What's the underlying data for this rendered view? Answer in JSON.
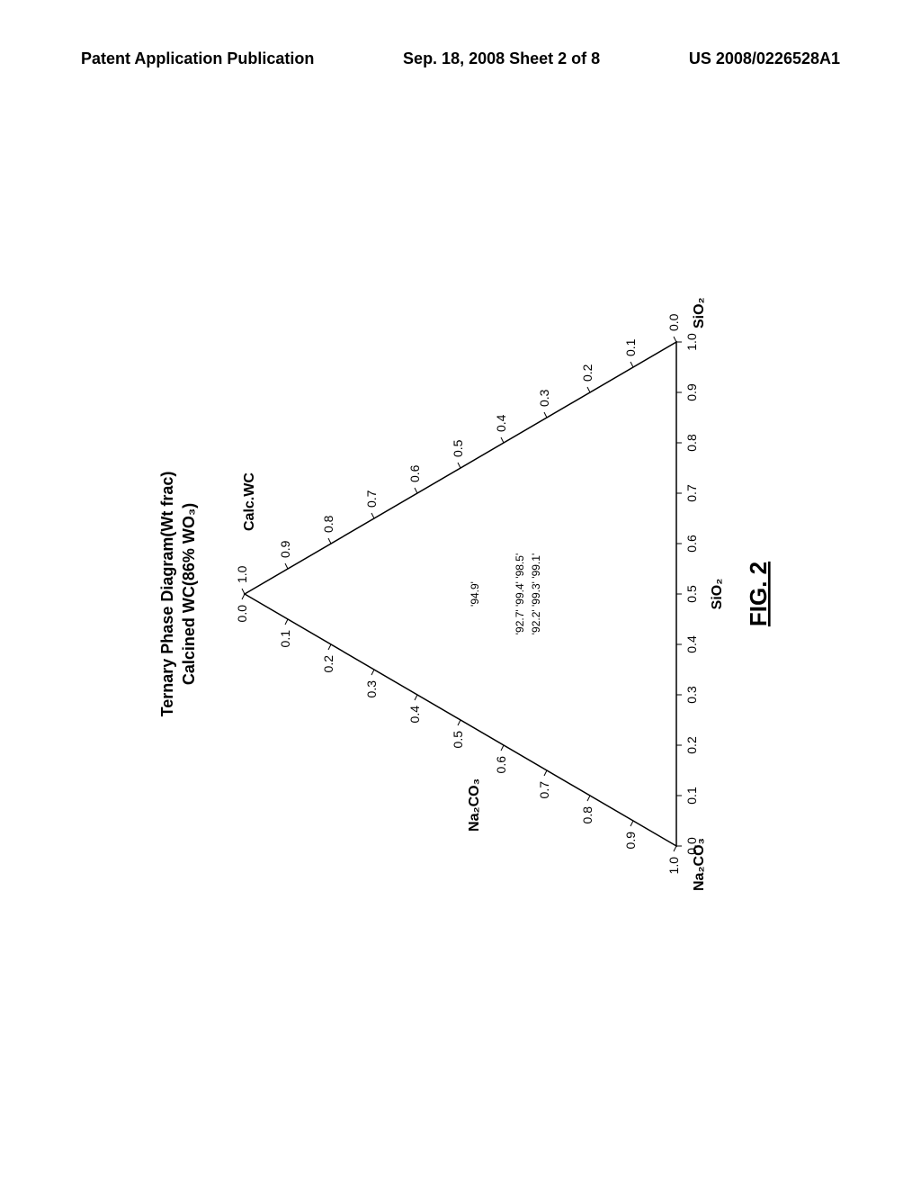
{
  "header": {
    "left": "Patent Application Publication",
    "center": "Sep. 18, 2008  Sheet 2 of 8",
    "right": "US 2008/0226528A1"
  },
  "figure_label": "FIG. 2",
  "diagram": {
    "title_line1": "Ternary Phase Diagram(Wt frac)",
    "title_line2": "Calcined WC(86% WO₃)",
    "vertex_top": "Calc.WC",
    "vertex_left": "Na₂CO₃",
    "vertex_right": "SiO₂",
    "axis_bottom_label": "SiO₂",
    "axis_left_label": "Na₂CO₃",
    "ticks": [
      "0.0",
      "0.1",
      "0.2",
      "0.3",
      "0.4",
      "0.5",
      "0.6",
      "0.7",
      "0.8",
      "0.9",
      "1.0"
    ],
    "data_points_labels": [
      "'94.9'",
      "'92.7' '99.4' '98.5'",
      "'92.2' '99.3' '99.1'"
    ],
    "colors": {
      "bg": "#ffffff",
      "line": "#000000",
      "text": "#000000"
    },
    "stroke_width": 1.5
  }
}
